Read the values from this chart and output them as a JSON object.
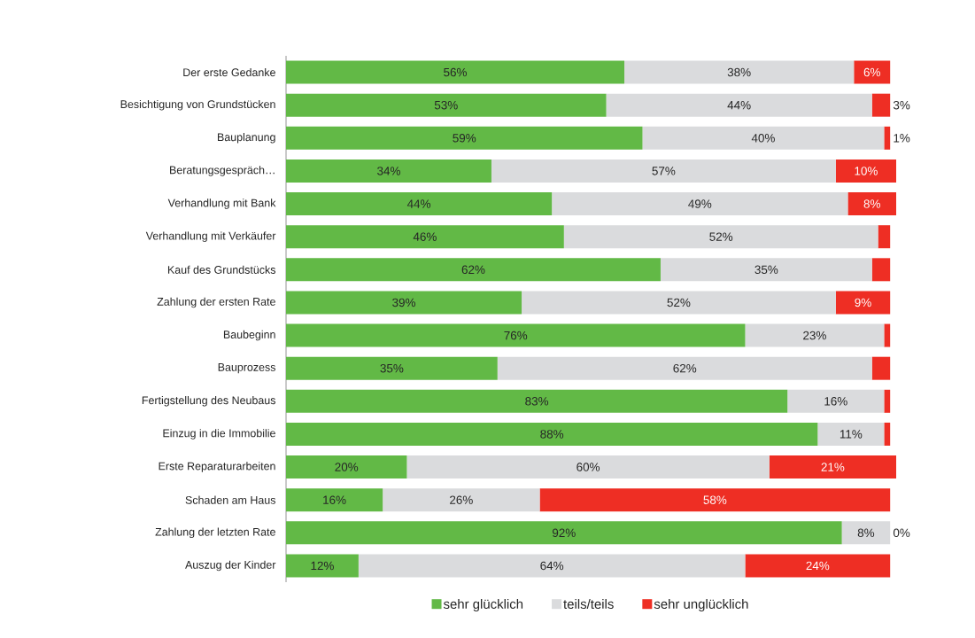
{
  "chart_data": {
    "type": "bar",
    "orientation": "horizontal",
    "stacked": true,
    "legend": "bottom",
    "categories": [
      "Der erste Gedanke",
      "Besichtigung von Grundstücken",
      "Bauplanung",
      "Beratungsgespräch…",
      "Verhandlung mit Bank",
      "Verhandlung mit Verkäufer",
      "Kauf des Grundstücks",
      "Zahlung der ersten Rate",
      "Baubeginn",
      "Bauprozess",
      "Fertigstellung des Neubaus",
      "Einzug in die Immobilie",
      "Erste Reparaturarbeiten",
      "Schaden am Haus",
      "Zahlung der letzten Rate",
      "Auszug der Kinder"
    ],
    "series": [
      {
        "name": "sehr glücklich",
        "color": "#62b946",
        "values": [
          56,
          53,
          59,
          34,
          44,
          46,
          62,
          39,
          76,
          35,
          83,
          88,
          20,
          16,
          92,
          12
        ],
        "value_labels": [
          "56%",
          "53%",
          "59%",
          "34%",
          "44%",
          "46%",
          "62%",
          "39%",
          "76%",
          "35%",
          "83%",
          "88%",
          "20%",
          "16%",
          "92%",
          "12%"
        ]
      },
      {
        "name": "teils/teils",
        "color": "#dadbdd",
        "values": [
          38,
          44,
          40,
          57,
          49,
          52,
          35,
          52,
          23,
          62,
          16,
          11,
          60,
          26,
          8,
          64
        ],
        "value_labels": [
          "38%",
          "44%",
          "40%",
          "57%",
          "49%",
          "52%",
          "35%",
          "52%",
          "23%",
          "62%",
          "16%",
          "11%",
          "60%",
          "26%",
          "8%",
          "64%"
        ]
      },
      {
        "name": "sehr unglücklich",
        "color": "#ee2e24",
        "values": [
          6,
          3,
          1,
          10,
          8,
          2,
          3,
          9,
          1,
          3,
          1,
          1,
          21,
          58,
          0,
          24
        ],
        "value_labels": [
          "6%",
          "3%",
          "1%",
          "10%",
          "8%",
          null,
          null,
          "9%",
          null,
          null,
          null,
          null,
          "21%",
          "58%",
          "0%",
          "24%"
        ]
      }
    ]
  }
}
